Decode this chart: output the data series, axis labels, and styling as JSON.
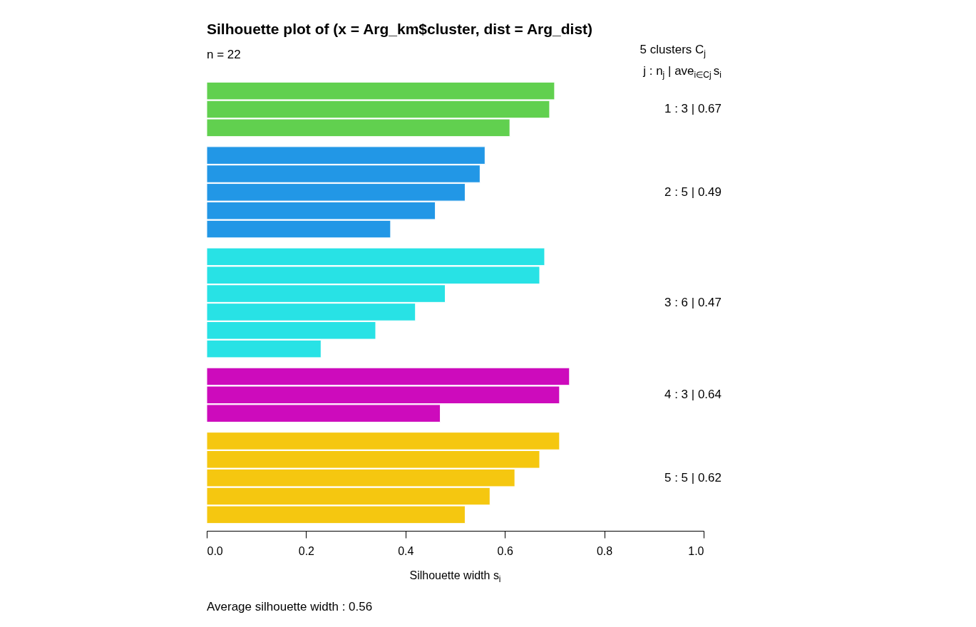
{
  "chart_data": {
    "type": "bar",
    "orientation": "horizontal",
    "title": "Silhouette plot of (x = Arg_km$cluster, dist = Arg_dist)",
    "subtitle": "n = 22",
    "xlabel": "Silhouette width s$_{i}$",
    "legend_title": "5 clusters C$_{j}$",
    "categories": [
      null,
      null,
      null,
      null,
      null,
      null,
      null,
      null,
      null,
      null,
      null,
      null,
      null,
      null,
      null,
      null,
      null,
      null,
      null,
      null,
      null,
      null
    ],
    "values": [
      0.7,
      0.69,
      0.61,
      0.56,
      0.55,
      0.52,
      0.46,
      0.37,
      0.68,
      0.67,
      0.48,
      0.42,
      0.34,
      0.23,
      0.73,
      0.71,
      0.47,
      0.71,
      0.67,
      0.62,
      0.57,
      0.52
    ],
    "colors": [
      "#61d04f",
      "#61d04f",
      "#61d04f",
      "#2297e6",
      "#2297e6",
      "#2297e6",
      "#2297e6",
      "#2297e6",
      "#28e2e5",
      "#28e2e5",
      "#28e2e5",
      "#28e2e5",
      "#28e2e5",
      "#28e2e5",
      "#cd0bbc",
      "#cd0bbc",
      "#cd0bbc",
      "#f5c710",
      "#f5c710",
      "#f5c710",
      "#f5c710",
      "#f5c710"
    ],
    "annotations": [
      "j : n$_{j}$ | ave$_{i∈Cj}$ s$_{i}$",
      "1 : 3 | 0.67",
      "2 : 5 | 0.49",
      "3 : 6 | 0.47",
      "4 : 3 | 0.64",
      "5 : 5 | 0.62",
      "Average silhouette width : 0.56"
    ],
    "xlim": [
      0,
      1
    ],
    "xticks": [
      {
        "value": 0,
        "label": "0.0"
      },
      {
        "value": 0.2,
        "label": "0.2"
      },
      {
        "value": 0.4,
        "label": "0.4"
      },
      {
        "value": 0.6,
        "label": "0.6"
      },
      {
        "value": 0.8,
        "label": "0.8"
      },
      {
        "value": 1,
        "label": "1.0"
      }
    ],
    "grid": false,
    "legend": false
  }
}
